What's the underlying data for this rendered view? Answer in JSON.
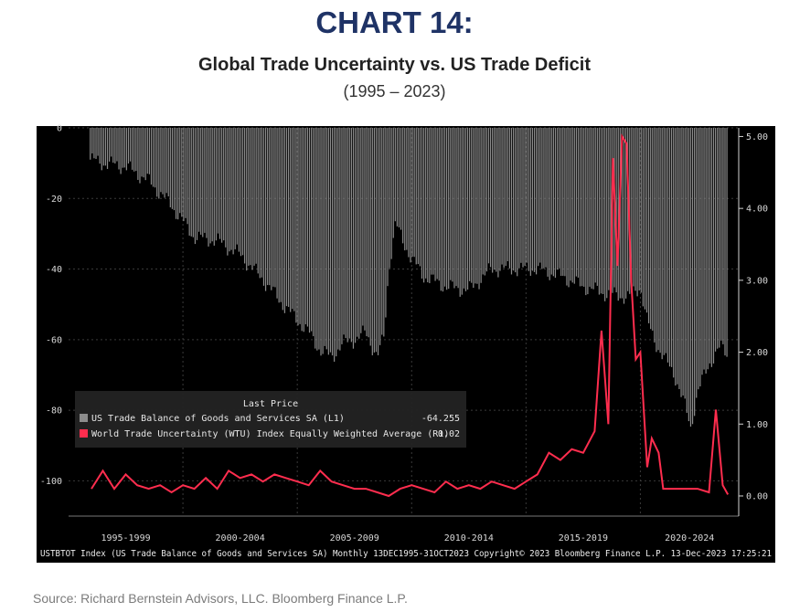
{
  "header": {
    "chart_number": "CHART 14:",
    "title": "Global Trade Uncertainty vs. US Trade Deficit",
    "subtitle": "(1995 – 2023)"
  },
  "source": "Source: Richard Bernstein Advisors, LLC. Bloomberg Finance L.P.",
  "colors": {
    "background": "#000000",
    "bars": "#8c8c8c",
    "line": "#ff2d4e",
    "grid": "#3a3a3a",
    "title": "#1f3366"
  },
  "chart_data": {
    "type": "bar",
    "title": "Global Trade Uncertainty vs. US Trade Deficit",
    "subtitle": "(1995 – 2023)",
    "x_period_labels": [
      "1995-1999",
      "2000-2004",
      "2005-2009",
      "2010-2014",
      "2015-2019",
      "2020-2024"
    ],
    "left_axis": {
      "ticks": [
        "0",
        "-20",
        "-40",
        "-60",
        "-80",
        "-100"
      ],
      "ylim": [
        -110,
        0
      ]
    },
    "right_axis": {
      "ticks": [
        "5.00",
        "4.00",
        "3.00",
        "2.00",
        "1.00",
        "0.00"
      ],
      "ylim": [
        -0.28,
        5.12
      ]
    },
    "grid": true,
    "legend": {
      "title": "Last Price",
      "placement": "bottom-left",
      "entries": [
        {
          "label": "US Trade Balance of Goods and Services SA  (L1)",
          "value": "-64.255",
          "color": "#8c8c8c"
        },
        {
          "label": "World Trade Uncertainty (WTU) Index Equally Weighted Average  (R1)",
          "value": "0.02",
          "color": "#ff2d4e"
        }
      ]
    },
    "footer": "USTBTOT Index (US Trade Balance of Goods and Services SA)  Monthly 13DEC1995-31OCT2023 Copyright© 2023 Bloomberg Finance L.P.  13-Dec-2023 17:25:21",
    "series": [
      {
        "name": "US Trade Balance of Goods and Services SA  (L1)",
        "type": "bar",
        "axis": "left",
        "x": [
          1995.95,
          1996.5,
          1997.5,
          1998.5,
          1999.5,
          2000.5,
          2001.5,
          2002.5,
          2003.5,
          2004.5,
          2005.5,
          2006.0,
          2006.5,
          2007.0,
          2007.5,
          2008.0,
          2008.5,
          2008.8,
          2009.0,
          2009.3,
          2009.6,
          2010.0,
          2010.5,
          2011.5,
          2012.5,
          2013.5,
          2014.5,
          2015.5,
          2016.5,
          2017.5,
          2018.5,
          2019.5,
          2020.0,
          2020.3,
          2020.6,
          2021.0,
          2021.5,
          2022.0,
          2022.2,
          2022.5,
          2023.0,
          2023.5,
          2023.83
        ],
        "values": [
          -9,
          -10,
          -11,
          -15,
          -22,
          -31,
          -32,
          -36,
          -43,
          -51,
          -58,
          -63,
          -65,
          -61,
          -60,
          -58,
          -65,
          -59,
          -40,
          -27,
          -32,
          -37,
          -42,
          -45,
          -46,
          -40,
          -40,
          -40,
          -42,
          -45,
          -47,
          -48,
          -45,
          -55,
          -60,
          -65,
          -70,
          -80,
          -85,
          -75,
          -67,
          -62,
          -64.255
        ]
      },
      {
        "name": "World Trade Uncertainty (WTU) Index Equally Weighted Average  (R1)",
        "type": "line",
        "axis": "right",
        "x": [
          1996.0,
          1996.5,
          1997.0,
          1997.5,
          1998.0,
          1998.5,
          1999.0,
          1999.5,
          2000.0,
          2000.5,
          2001.0,
          2001.5,
          2002.0,
          2002.5,
          2003.0,
          2003.5,
          2004.0,
          2004.5,
          2005.0,
          2005.5,
          2006.0,
          2006.5,
          2007.0,
          2007.5,
          2008.0,
          2008.5,
          2009.0,
          2009.5,
          2010.0,
          2010.5,
          2011.0,
          2011.5,
          2012.0,
          2012.5,
          2013.0,
          2013.5,
          2014.0,
          2014.5,
          2015.0,
          2015.5,
          2016.0,
          2016.5,
          2017.0,
          2017.5,
          2018.0,
          2018.3,
          2018.6,
          2018.8,
          2019.0,
          2019.2,
          2019.4,
          2019.6,
          2019.8,
          2020.0,
          2020.3,
          2020.5,
          2020.8,
          2021.0,
          2021.5,
          2022.0,
          2022.5,
          2023.0,
          2023.3,
          2023.6,
          2023.83
        ],
        "values": [
          0.1,
          0.35,
          0.1,
          0.3,
          0.15,
          0.1,
          0.15,
          0.05,
          0.15,
          0.1,
          0.25,
          0.1,
          0.35,
          0.25,
          0.3,
          0.2,
          0.3,
          0.25,
          0.2,
          0.15,
          0.35,
          0.2,
          0.15,
          0.1,
          0.1,
          0.05,
          0.0,
          0.1,
          0.15,
          0.1,
          0.05,
          0.2,
          0.1,
          0.15,
          0.1,
          0.2,
          0.15,
          0.1,
          0.2,
          0.3,
          0.6,
          0.5,
          0.65,
          0.6,
          0.9,
          2.3,
          1.0,
          4.7,
          3.2,
          5.0,
          4.9,
          3.0,
          1.9,
          2.0,
          0.4,
          0.8,
          0.6,
          0.1,
          0.1,
          0.1,
          0.1,
          0.05,
          1.2,
          0.15,
          0.02
        ]
      }
    ]
  }
}
